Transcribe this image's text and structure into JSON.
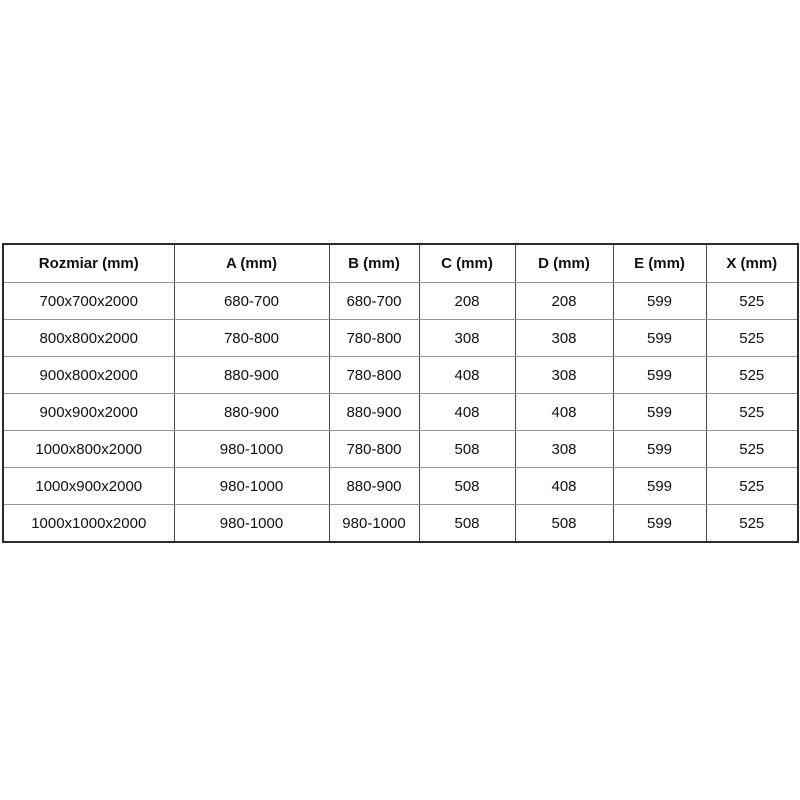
{
  "page": {
    "background_color": "#ffffff",
    "text_color": "#111111",
    "outer_border_color": "#2b2b2b",
    "vertical_border_color": "#4a4a4a",
    "horizontal_border_color": "#969696"
  },
  "table": {
    "headers": [
      "Rozmiar (mm)",
      "A (mm)",
      "B (mm)",
      "C (mm)",
      "D (mm)",
      "E (mm)",
      "X (mm)"
    ],
    "rows": [
      [
        "700x700x2000",
        "680-700",
        "680-700",
        "208",
        "208",
        "599",
        "525"
      ],
      [
        "800x800x2000",
        "780-800",
        "780-800",
        "308",
        "308",
        "599",
        "525"
      ],
      [
        "900x800x2000",
        "880-900",
        "780-800",
        "408",
        "308",
        "599",
        "525"
      ],
      [
        "900x900x2000",
        "880-900",
        "880-900",
        "408",
        "408",
        "599",
        "525"
      ],
      [
        "1000x800x2000",
        "980-1000",
        "780-800",
        "508",
        "308",
        "599",
        "525"
      ],
      [
        "1000x900x2000",
        "980-1000",
        "880-900",
        "508",
        "408",
        "599",
        "525"
      ],
      [
        "1000x1000x2000",
        "980-1000",
        "980-1000",
        "508",
        "508",
        "599",
        "525"
      ]
    ]
  }
}
